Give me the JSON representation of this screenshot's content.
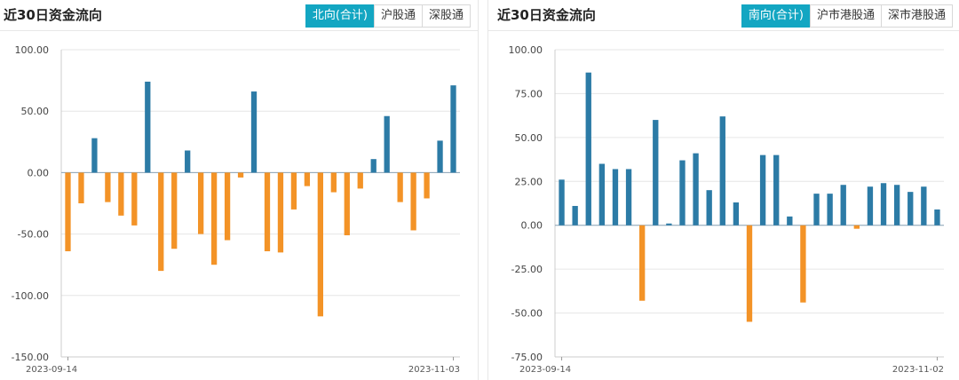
{
  "colors": {
    "positive": "#2c7ba6",
    "negative": "#f39327",
    "accent": "#13a6c2",
    "grid": "#e6e6e6"
  },
  "panels": [
    {
      "title": "近30日资金流向",
      "tabs": [
        {
          "label": "北向(合计)",
          "active": true
        },
        {
          "label": "沪股通",
          "active": false
        },
        {
          "label": "深股通",
          "active": false
        }
      ]
    },
    {
      "title": "近30日资金流向",
      "tabs": [
        {
          "label": "南向(合计)",
          "active": true
        },
        {
          "label": "沪市港股通",
          "active": false
        },
        {
          "label": "深市港股通",
          "active": false
        }
      ]
    }
  ],
  "chart_data": [
    {
      "type": "bar",
      "title": "",
      "xlabel": "",
      "ylabel": "",
      "ylim": [
        -150,
        100
      ],
      "yticks": [
        "100.00",
        "50.00",
        "0.00",
        "-50.00",
        "-100.00",
        "-150.00"
      ],
      "ytick_values": [
        100,
        50,
        0,
        -50,
        -100,
        -150
      ],
      "x_start_label": "2023-09-14",
      "x_end_label": "2023-11-03",
      "grid": true,
      "values": [
        -64,
        -25,
        28,
        -24,
        -35,
        -43,
        74,
        -80,
        -62,
        18,
        -50,
        -75,
        -55,
        -4,
        66,
        -64,
        -65,
        -30,
        -11,
        -117,
        -16,
        -51,
        -13,
        11,
        46,
        -24,
        -47,
        -21,
        26,
        71
      ]
    },
    {
      "type": "bar",
      "title": "",
      "xlabel": "",
      "ylabel": "",
      "ylim": [
        -75,
        100
      ],
      "yticks": [
        "100.00",
        "75.00",
        "50.00",
        "25.00",
        "0.00",
        "-25.00",
        "-50.00",
        "-75.00"
      ],
      "ytick_values": [
        100,
        75,
        50,
        25,
        0,
        -25,
        -50,
        -75
      ],
      "x_start_label": "2023-09-14",
      "x_end_label": "2023-11-02",
      "grid": true,
      "values": [
        26,
        11,
        87,
        35,
        32,
        32,
        -43,
        60,
        1,
        37,
        41,
        20,
        62,
        13,
        -55,
        40,
        40,
        5,
        -44,
        18,
        18,
        23,
        -2,
        22,
        24,
        23,
        19,
        22,
        9
      ]
    }
  ]
}
